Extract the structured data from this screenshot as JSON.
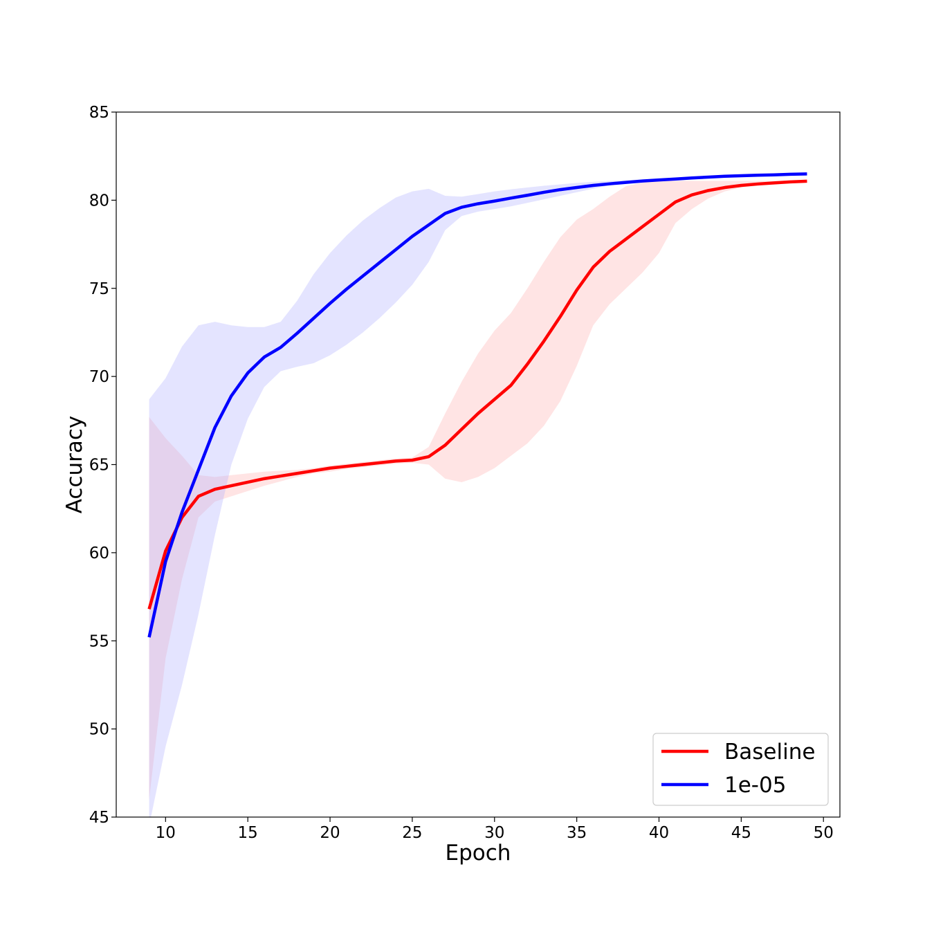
{
  "chart_data": {
    "type": "line",
    "title": "",
    "xlabel": "Epoch",
    "ylabel": "Accuracy",
    "xlim": [
      7,
      51
    ],
    "ylim": [
      45,
      85
    ],
    "xticks": [
      10,
      15,
      20,
      25,
      30,
      35,
      40,
      45,
      50
    ],
    "yticks": [
      45,
      50,
      55,
      60,
      65,
      70,
      75,
      80,
      85
    ],
    "grid": false,
    "legend_position": "bottom-right",
    "x": [
      9,
      10,
      11,
      12,
      13,
      14,
      15,
      16,
      17,
      18,
      19,
      20,
      21,
      22,
      23,
      24,
      25,
      26,
      27,
      28,
      29,
      30,
      31,
      32,
      33,
      34,
      35,
      36,
      37,
      38,
      39,
      40,
      41,
      42,
      43,
      44,
      45,
      46,
      47,
      48,
      49
    ],
    "series": [
      {
        "name": "Baseline",
        "color": "#ff0000",
        "fill_color": "#ffb3b3",
        "values": [
          56.8,
          60.1,
          62.0,
          63.2,
          63.6,
          63.8,
          64.0,
          64.2,
          64.35,
          64.5,
          64.65,
          64.8,
          64.9,
          65.0,
          65.1,
          65.2,
          65.25,
          65.45,
          66.1,
          67.0,
          67.9,
          68.7,
          69.5,
          70.7,
          72.0,
          73.4,
          74.9,
          76.2,
          77.1,
          77.8,
          78.5,
          79.2,
          79.9,
          80.3,
          80.55,
          80.72,
          80.84,
          80.92,
          80.98,
          81.04,
          81.08
        ],
        "lower": [
          46.0,
          54.0,
          58.5,
          62.0,
          62.9,
          63.2,
          63.5,
          63.8,
          64.05,
          64.3,
          64.5,
          64.6,
          64.75,
          64.85,
          64.95,
          65.05,
          65.1,
          65.0,
          64.2,
          64.0,
          64.3,
          64.8,
          65.5,
          66.2,
          67.2,
          68.6,
          70.6,
          72.9,
          74.1,
          75.0,
          75.9,
          77.0,
          78.7,
          79.5,
          80.1,
          80.5,
          80.72,
          80.82,
          80.9,
          80.98,
          81.04
        ],
        "upper": [
          67.7,
          66.5,
          65.5,
          64.4,
          64.3,
          64.4,
          64.5,
          64.6,
          64.65,
          64.7,
          64.8,
          64.95,
          65.05,
          65.15,
          65.25,
          65.35,
          65.4,
          66.0,
          67.9,
          69.7,
          71.3,
          72.6,
          73.6,
          75.0,
          76.5,
          77.9,
          78.9,
          79.5,
          80.2,
          80.8,
          81.0,
          81.1,
          81.1,
          81.1,
          81.1,
          81.1,
          81.1,
          81.1,
          81.1,
          81.1,
          81.12
        ]
      },
      {
        "name": "1e-05",
        "color": "#0000ff",
        "fill_color": "#b3b3ff",
        "values": [
          55.2,
          59.5,
          62.3,
          64.7,
          67.1,
          68.9,
          70.2,
          71.1,
          71.65,
          72.45,
          73.3,
          74.15,
          74.95,
          75.7,
          76.45,
          77.2,
          77.95,
          78.6,
          79.25,
          79.6,
          79.8,
          79.95,
          80.12,
          80.28,
          80.45,
          80.6,
          80.72,
          80.84,
          80.93,
          81.01,
          81.09,
          81.15,
          81.2,
          81.26,
          81.31,
          81.36,
          81.39,
          81.42,
          81.44,
          81.47,
          81.49
        ],
        "lower": [
          44.5,
          49.0,
          52.5,
          56.5,
          61.0,
          65.0,
          67.6,
          69.4,
          70.3,
          70.55,
          70.75,
          71.2,
          71.8,
          72.5,
          73.3,
          74.2,
          75.2,
          76.5,
          78.3,
          79.1,
          79.35,
          79.5,
          79.65,
          79.85,
          80.05,
          80.25,
          80.45,
          80.65,
          80.85,
          80.95,
          81.05,
          81.12,
          81.18,
          81.24,
          81.3,
          81.35,
          81.38,
          81.4,
          81.42,
          81.45,
          81.47
        ],
        "upper": [
          68.7,
          69.9,
          71.7,
          72.9,
          73.1,
          72.9,
          72.8,
          72.8,
          73.1,
          74.3,
          75.8,
          77.0,
          78.0,
          78.85,
          79.55,
          80.15,
          80.5,
          80.65,
          80.25,
          80.2,
          80.35,
          80.5,
          80.62,
          80.72,
          80.82,
          80.9,
          80.98,
          81.04,
          81.1,
          81.14,
          81.18,
          81.22,
          81.26,
          81.3,
          81.34,
          81.38,
          81.41,
          81.44,
          81.46,
          81.49,
          81.51
        ]
      }
    ]
  }
}
